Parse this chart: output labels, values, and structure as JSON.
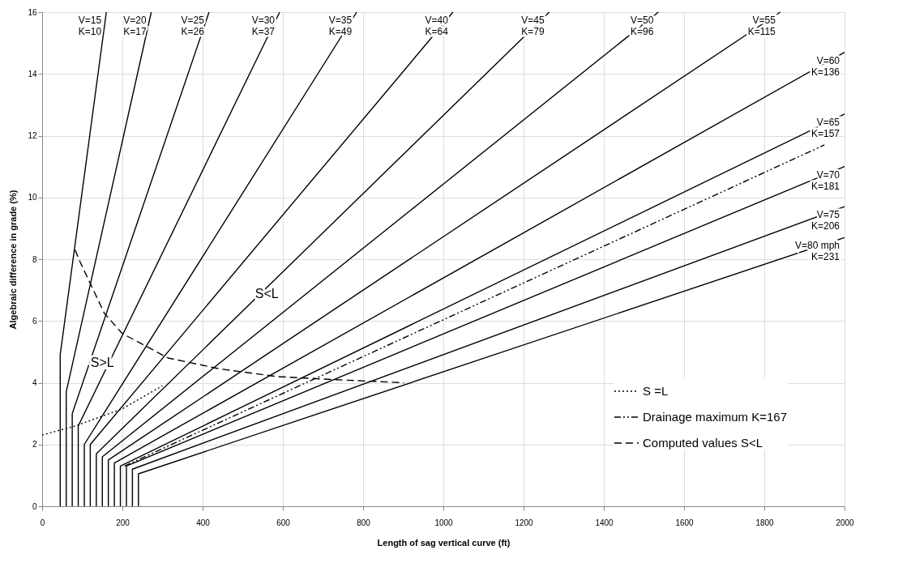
{
  "chart_data": {
    "type": "line",
    "xlabel": "Length of sag vertical curve (ft)",
    "ylabel": "Algebraic difference in grade (%)",
    "xlim": [
      0,
      2000
    ],
    "xticks": [
      0,
      200,
      400,
      600,
      800,
      1000,
      1200,
      1400,
      1600,
      1800,
      2000
    ],
    "ylim": [
      0,
      16
    ],
    "yticks": [
      0,
      2,
      4,
      6,
      8,
      10,
      12,
      14,
      16
    ],
    "grid": true,
    "legend": "bottom right",
    "series": [
      {
        "name": "V=15\nK=10",
        "color": "#000000",
        "line_style": "solid",
        "x": [
          45,
          45,
          160
        ],
        "values": [
          0,
          4.9,
          16
        ]
      },
      {
        "name": "V=20\nK=17",
        "color": "#000000",
        "line_style": "solid",
        "x": [
          60,
          60,
          272
        ],
        "values": [
          0,
          3.7,
          16
        ]
      },
      {
        "name": "V=25\nK=26",
        "color": "#000000",
        "line_style": "solid",
        "x": [
          75,
          75,
          416
        ],
        "values": [
          0,
          3.0,
          16
        ]
      },
      {
        "name": "V=30\nK=37",
        "color": "#000000",
        "line_style": "solid",
        "x": [
          90,
          90,
          592
        ],
        "values": [
          0,
          2.6,
          16
        ]
      },
      {
        "name": "V=35\nK=49",
        "color": "#000000",
        "line_style": "solid",
        "x": [
          105,
          105,
          784
        ],
        "values": [
          0,
          2.0,
          16
        ]
      },
      {
        "name": "V=40\nK=64",
        "color": "#000000",
        "line_style": "solid",
        "x": [
          120,
          120,
          1024
        ],
        "values": [
          0,
          2.0,
          16
        ]
      },
      {
        "name": "V=45\nK=79",
        "color": "#000000",
        "line_style": "solid",
        "x": [
          135,
          135,
          1264
        ],
        "values": [
          0,
          1.7,
          16
        ]
      },
      {
        "name": "V=50\nK=96",
        "color": "#000000",
        "line_style": "solid",
        "x": [
          150,
          150,
          1536
        ],
        "values": [
          0,
          1.6,
          16
        ]
      },
      {
        "name": "V=55\nK=115",
        "color": "#000000",
        "line_style": "solid",
        "x": [
          165,
          165,
          1840
        ],
        "values": [
          0,
          1.5,
          16
        ]
      },
      {
        "name": "V=60\nK=136",
        "color": "#000000",
        "line_style": "solid",
        "x": [
          180,
          180,
          2000
        ],
        "values": [
          0,
          1.4,
          14.7
        ]
      },
      {
        "name": "V=65\nK=157",
        "color": "#000000",
        "line_style": "solid",
        "x": [
          195,
          195,
          2000
        ],
        "values": [
          0,
          1.3,
          12.7
        ]
      },
      {
        "name": "V=70\nK=181",
        "color": "#000000",
        "line_style": "solid",
        "x": [
          210,
          210,
          2000
        ],
        "values": [
          0,
          1.3,
          11.0
        ]
      },
      {
        "name": "V=75\nK=206",
        "color": "#000000",
        "line_style": "solid",
        "x": [
          225,
          225,
          2000
        ],
        "values": [
          0,
          1.2,
          9.7
        ]
      },
      {
        "name": "V=80 mph\nK=231",
        "color": "#000000",
        "line_style": "solid",
        "x": [
          240,
          240,
          2000
        ],
        "values": [
          0,
          1.05,
          8.7
        ]
      },
      {
        "name": "S =L",
        "color": "#000000",
        "line_style": "dotted",
        "x": [
          0,
          12,
          83,
          199,
          300
        ],
        "values": [
          2.3,
          2.35,
          2.6,
          3.15,
          3.9
        ]
      },
      {
        "name": "Drainage maximum K=167",
        "color": "#000000",
        "line_style": "dashdot",
        "x": [
          205,
          1950
        ],
        "values": [
          1.3,
          11.7
        ]
      },
      {
        "name": "Computed values S<L",
        "color": "#000000",
        "line_style": "dashed",
        "x": [
          82,
          95,
          155,
          199,
          314,
          442,
          585,
          730,
          902
        ],
        "values": [
          8.3,
          7.9,
          6.25,
          5.6,
          4.8,
          4.45,
          4.2,
          4.1,
          4.0
        ]
      }
    ],
    "annotations": [
      "S<L",
      "S>L"
    ]
  }
}
